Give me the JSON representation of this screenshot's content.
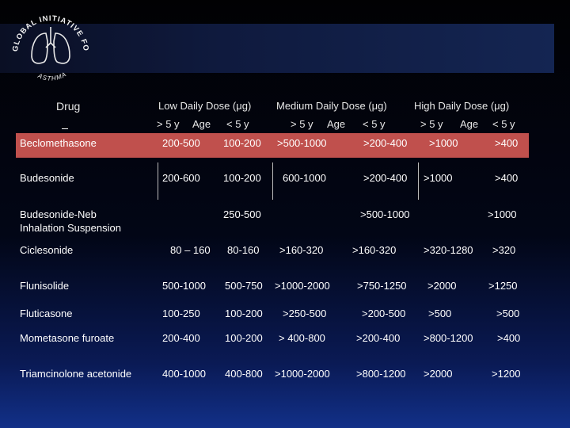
{
  "logo": {
    "text_top": "GLOBAL INITIATIVE FOR",
    "text_bottom": "ASTHMA",
    "icon": "lungs-logo-icon"
  },
  "table": {
    "drug_header": "Drug",
    "dose_groups": [
      "Low  Daily Dose (μg)",
      "Medium Daily Dose (μg)",
      "High Daily Dose (μg)"
    ],
    "age_headers": {
      "low_gt5": "> 5 y",
      "low_age": "Age",
      "low_lt5": "< 5 y",
      "med_gt5": "> 5 y",
      "med_age": "Age",
      "med_lt5": "< 5 y",
      "high_gt5": "> 5 y",
      "high_age": "Age",
      "high_lt5": "< 5 y"
    },
    "rows": [
      {
        "drug": "Beclomethasone",
        "low_gt5": "200-500",
        "low_lt5": "100-200",
        "med_gt5": ">500-1000",
        "med_lt5": ">200-400",
        "high_gt5": ">1000",
        "high_lt5": ">400"
      },
      {
        "drug": "Budesonide",
        "low_gt5": "200-600",
        "low_lt5": "100-200",
        "med_gt5": "600-1000",
        "med_lt5": ">200-400",
        "high_gt5": ">1000",
        "high_lt5": ">400"
      },
      {
        "drug_line1": "Budesonide-Neb",
        "drug_line2": "Inhalation Suspension",
        "low_lt5": "250-500",
        "med_lt5": ">500-1000",
        "high_lt5": ">1000"
      },
      {
        "drug": "Ciclesonide",
        "low_gt5": "80 – 160",
        "low_lt5": "80-160",
        "med_gt5": ">160-320",
        "med_lt5": ">160-320",
        "high_gt5": ">320-1280",
        "high_lt5": ">320"
      },
      {
        "drug": "Flunisolide",
        "low_gt5": "500-1000",
        "low_lt5": "500-750",
        "med_gt5": ">1000-2000",
        "med_lt5": ">750-1250",
        "high_gt5": ">2000",
        "high_lt5": ">1250"
      },
      {
        "drug": "Fluticasone",
        "low_gt5": "100-250",
        "low_lt5": "100-200",
        "med_gt5": ">250-500",
        "med_lt5": ">200-500",
        "high_gt5": ">500",
        "high_lt5": ">500"
      },
      {
        "drug": "Mometasone furoate",
        "low_gt5": "200-400",
        "low_lt5": "100-200",
        "med_gt5": "> 400-800",
        "med_lt5": ">200-400",
        "high_gt5": ">800-1200",
        "high_lt5": ">400"
      },
      {
        "drug": "Triamcinolone acetonide",
        "low_gt5": "400-1000",
        "low_lt5": "400-800",
        "med_gt5": ">1000-2000",
        "med_lt5": ">800-1200",
        "high_gt5": ">2000",
        "high_lt5": ">1200"
      }
    ]
  }
}
